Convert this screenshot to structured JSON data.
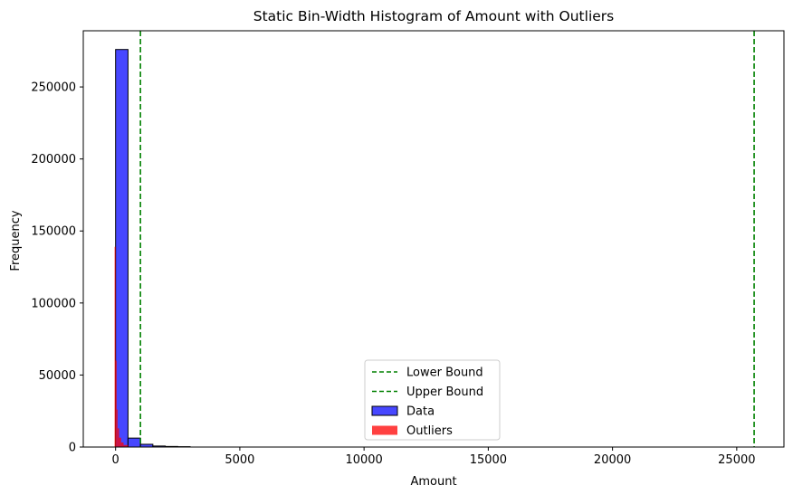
{
  "chart_data": {
    "type": "bar",
    "title": "Static Bin-Width Histogram of Amount with Outliers",
    "xlabel": "Amount",
    "ylabel": "Frequency",
    "xlim": [
      -1300,
      26900
    ],
    "ylim": [
      0,
      289000
    ],
    "xticks": [
      0,
      5000,
      10000,
      15000,
      20000,
      25000
    ],
    "yticks": [
      0,
      50000,
      100000,
      150000,
      200000,
      250000
    ],
    "grid": false,
    "legend_position": "lower center",
    "series": [
      {
        "name": "Data",
        "kind": "histogram",
        "color": "#0000ff",
        "opacity": 0.72,
        "edge_color": "#000000",
        "bin_width": 500,
        "bins": [
          {
            "x0": 0,
            "x1": 500,
            "count": 276000
          },
          {
            "x0": 500,
            "x1": 1000,
            "count": 6200
          },
          {
            "x0": 1000,
            "x1": 1500,
            "count": 1900
          },
          {
            "x0": 1500,
            "x1": 2000,
            "count": 700
          },
          {
            "x0": 2000,
            "x1": 2500,
            "count": 400
          },
          {
            "x0": 2500,
            "x1": 3000,
            "count": 250
          }
        ]
      },
      {
        "name": "Outliers",
        "kind": "histogram",
        "color": "#ff0000",
        "opacity": 0.75,
        "bins": [
          {
            "x0": -40,
            "x1": 0,
            "count": 139000
          },
          {
            "x0": 0,
            "x1": 40,
            "count": 60000
          },
          {
            "x0": 40,
            "x1": 80,
            "count": 26000
          },
          {
            "x0": 80,
            "x1": 140,
            "count": 13000
          },
          {
            "x0": 140,
            "x1": 220,
            "count": 6500
          },
          {
            "x0": 220,
            "x1": 320,
            "count": 3200
          },
          {
            "x0": 320,
            "x1": 500,
            "count": 1400
          }
        ]
      }
    ],
    "lines": [
      {
        "name": "Lower Bound",
        "x": 1000,
        "color": "#008000",
        "style": "dashed"
      },
      {
        "name": "Upper Bound",
        "x": 25700,
        "color": "#008000",
        "style": "dashed"
      }
    ]
  }
}
